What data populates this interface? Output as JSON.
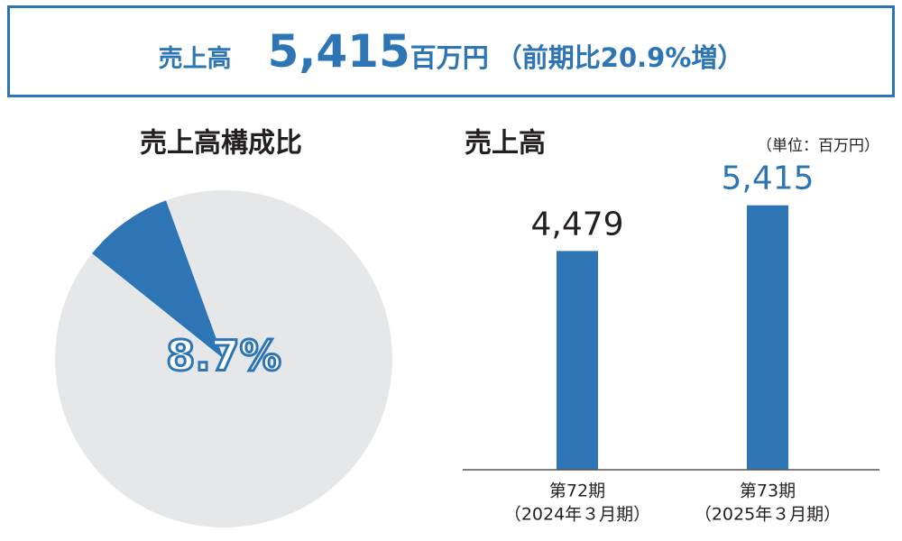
{
  "header": {
    "label": "売上高",
    "amount": "5,415",
    "unit": "百万円",
    "note": "（前期比20.9%増）"
  },
  "chart_data": [
    {
      "type": "pie",
      "title": "売上高構成比",
      "values": [
        8.7,
        91.3
      ],
      "value_labels": [
        "8.7%",
        null
      ],
      "colors": [
        "#2e75b6",
        "#e6e7e9"
      ]
    },
    {
      "type": "bar",
      "title": "売上高",
      "unit_label": "（単位：百万円）",
      "categories": [
        "第72期",
        "第73期"
      ],
      "category_sublabels": [
        "（2024年３月期）",
        "（2025年３月期）"
      ],
      "values": [
        4479,
        5415
      ],
      "value_labels": [
        "4,479",
        "5,415"
      ],
      "value_label_colors": [
        "#231f20",
        "#2e75b6"
      ],
      "color": "#2e75b6",
      "ylim": [
        0,
        6000
      ]
    }
  ]
}
